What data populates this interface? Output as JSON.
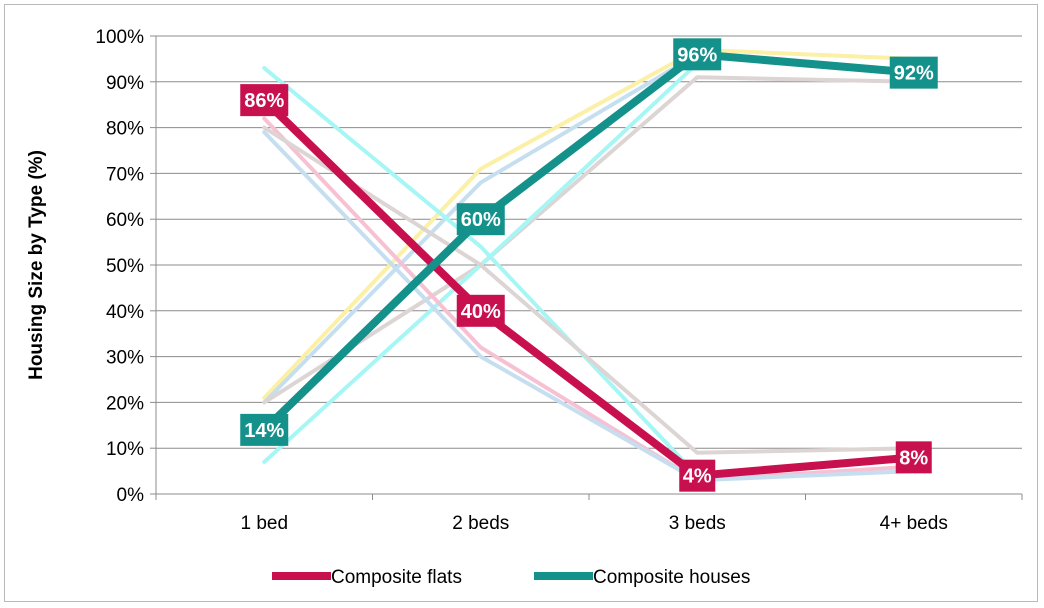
{
  "chart_data": {
    "type": "line",
    "title": "",
    "xlabel": "",
    "ylabel": "Housing Size by Type (%)",
    "categories": [
      "1 bed",
      "2 beds",
      "3 beds",
      "4+ beds"
    ],
    "ylim": [
      0,
      100
    ],
    "yticks": [
      "0%",
      "10%",
      "20%",
      "30%",
      "40%",
      "50%",
      "60%",
      "70%",
      "80%",
      "90%",
      "100%"
    ],
    "grid": true,
    "legend_position": "bottom",
    "series": [
      {
        "name": "Composite flats",
        "values": [
          86,
          40,
          4,
          8
        ],
        "labels": [
          "86%",
          "40%",
          "4%",
          "8%"
        ],
        "color": "#c8104f"
      },
      {
        "name": "Composite houses",
        "values": [
          14,
          60,
          96,
          92
        ],
        "labels": [
          "14%",
          "60%",
          "96%",
          "92%"
        ],
        "color": "#13918a"
      }
    ],
    "background_series": [
      {
        "color": "#fbf0a6",
        "values": [
          21,
          71,
          97,
          95
        ]
      },
      {
        "color": "#c6dff0",
        "values": [
          20,
          68,
          96,
          92
        ]
      },
      {
        "color": "#ddd4d4",
        "values": [
          20,
          50,
          91,
          90
        ]
      },
      {
        "color": "#a7f6f6",
        "values": [
          7,
          50,
          94,
          null
        ]
      },
      {
        "color": "#a7f6f6",
        "values": [
          93,
          54,
          4,
          null
        ]
      },
      {
        "color": "#f6c1d3",
        "values": [
          82,
          32,
          3,
          6
        ]
      },
      {
        "color": "#c6dff0",
        "values": [
          79,
          30,
          3,
          5
        ]
      },
      {
        "color": "#ddd4d4",
        "values": [
          80,
          50,
          9,
          10
        ]
      }
    ]
  }
}
